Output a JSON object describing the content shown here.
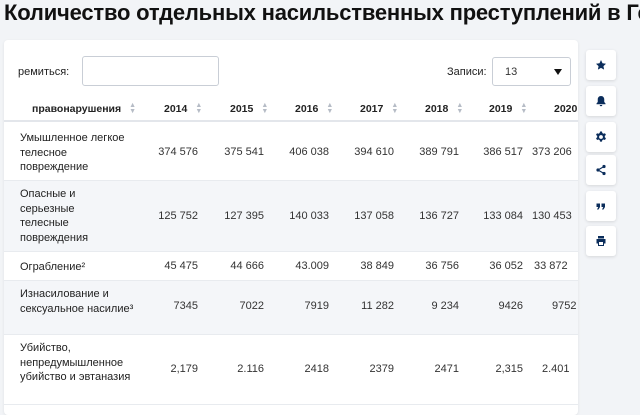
{
  "title": "Количество отдельных насильственных преступлений в Германии",
  "search": {
    "label": "ремиться:",
    "value": ""
  },
  "records": {
    "label": "Записи:",
    "value": "13"
  },
  "table": {
    "header_first": "правонарушения",
    "years": [
      "2014",
      "2015",
      "2016",
      "2017",
      "2018",
      "2019",
      "2020"
    ],
    "rows": [
      {
        "label": "Умышленное легкое телесное повреждение",
        "values": [
          "374 576",
          "375 541",
          "406 038",
          "394 610",
          "389 791",
          "386 517",
          "373 206"
        ]
      },
      {
        "label": "Опасные и серьезные телесные повреждения",
        "values": [
          "125 752",
          "127 395",
          "140 033",
          "137 058",
          "136 727",
          "133 084",
          "130 453"
        ]
      },
      {
        "label": "Ограбление²",
        "values": [
          "45 475",
          "44 666",
          "43.009",
          "38 849",
          "36 756",
          "36 052",
          "33 872"
        ]
      },
      {
        "label": "Изнасилование и сексуальное насилие³",
        "values": [
          "7345",
          "7022",
          "7919",
          "11 282",
          "9 234",
          "9426",
          "9752"
        ]
      },
      {
        "label": "Убийство, непредумышленное убийство и эвтаназия",
        "values": [
          "2,179",
          "2.116",
          "2418",
          "2379",
          "2471",
          "2,315",
          "2.401"
        ]
      }
    ]
  },
  "sidebar": {
    "buttons": [
      {
        "icon": "star-icon"
      },
      {
        "icon": "bell-icon"
      },
      {
        "icon": "gear-icon"
      },
      {
        "icon": "share-icon"
      },
      {
        "icon": "quote-icon"
      },
      {
        "icon": "print-icon"
      }
    ]
  }
}
